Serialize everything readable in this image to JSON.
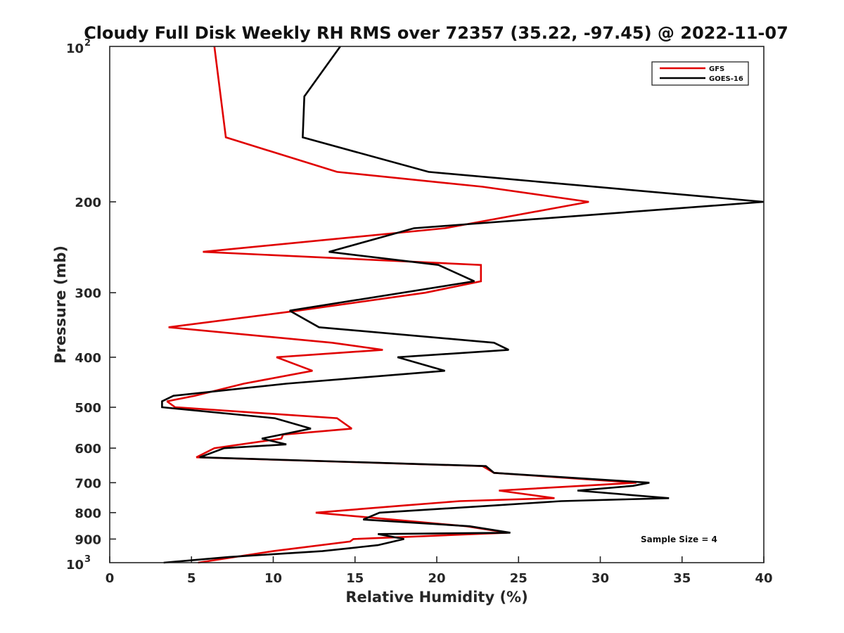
{
  "chart_data": {
    "type": "line",
    "title": "Cloudy Full Disk Weekly RH RMS over 72357 (35.22, -97.45) @ 2022-11-07",
    "xlabel": "Relative Humidity (%)",
    "ylabel": "Pressure (mb)",
    "xlim": [
      0,
      40
    ],
    "ylim": [
      100,
      1000
    ],
    "yscale": "log",
    "y_reversed": true,
    "x_ticks": [
      "0",
      "5",
      "10",
      "15",
      "20",
      "25",
      "30",
      "35",
      "40"
    ],
    "y_ticks": [
      {
        "value": 200,
        "label": "200"
      },
      {
        "value": 300,
        "label": "300"
      },
      {
        "value": 400,
        "label": "400"
      },
      {
        "value": 500,
        "label": "500"
      },
      {
        "value": 600,
        "label": "600"
      },
      {
        "value": 700,
        "label": "700"
      },
      {
        "value": 800,
        "label": "800"
      },
      {
        "value": 900,
        "label": "900"
      }
    ],
    "y_end_ticks": [
      {
        "value": 100,
        "base": "10",
        "exp": "2"
      },
      {
        "value": 1000,
        "base": "10",
        "exp": "3"
      }
    ],
    "grid": false,
    "legend_position": "top-right",
    "annotation": "Sample Size = 4",
    "series": [
      {
        "name": "GFS",
        "color": "#e00000",
        "points": [
          {
            "x": 6.4,
            "y": 100
          },
          {
            "x": 7.1,
            "y": 150
          },
          {
            "x": 13.9,
            "y": 175
          },
          {
            "x": 22.8,
            "y": 187
          },
          {
            "x": 29.3,
            "y": 200
          },
          {
            "x": 20.5,
            "y": 225
          },
          {
            "x": 5.7,
            "y": 250
          },
          {
            "x": 22.7,
            "y": 265
          },
          {
            "x": 22.7,
            "y": 285
          },
          {
            "x": 19.3,
            "y": 300
          },
          {
            "x": 11.5,
            "y": 325
          },
          {
            "x": 3.6,
            "y": 350
          },
          {
            "x": 13.6,
            "y": 375
          },
          {
            "x": 16.7,
            "y": 387
          },
          {
            "x": 10.2,
            "y": 400
          },
          {
            "x": 12.4,
            "y": 425
          },
          {
            "x": 8.2,
            "y": 450
          },
          {
            "x": 5.2,
            "y": 475
          },
          {
            "x": 3.5,
            "y": 487
          },
          {
            "x": 4.0,
            "y": 500
          },
          {
            "x": 13.9,
            "y": 525
          },
          {
            "x": 14.8,
            "y": 550
          },
          {
            "x": 10.6,
            "y": 565
          },
          {
            "x": 10.5,
            "y": 575
          },
          {
            "x": 6.4,
            "y": 600
          },
          {
            "x": 5.3,
            "y": 625
          },
          {
            "x": 22.8,
            "y": 650
          },
          {
            "x": 23.5,
            "y": 670
          },
          {
            "x": 32.2,
            "y": 700
          },
          {
            "x": 23.8,
            "y": 725
          },
          {
            "x": 27.2,
            "y": 750
          },
          {
            "x": 21.4,
            "y": 760
          },
          {
            "x": 18.0,
            "y": 775
          },
          {
            "x": 12.6,
            "y": 800
          },
          {
            "x": 21.8,
            "y": 850
          },
          {
            "x": 24.3,
            "y": 875
          },
          {
            "x": 14.9,
            "y": 900
          },
          {
            "x": 14.7,
            "y": 910
          },
          {
            "x": 10.0,
            "y": 950
          },
          {
            "x": 5.4,
            "y": 1000
          }
        ]
      },
      {
        "name": "GOES-16",
        "color": "#000000",
        "points": [
          {
            "x": 14.1,
            "y": 100
          },
          {
            "x": 11.9,
            "y": 125
          },
          {
            "x": 11.8,
            "y": 150
          },
          {
            "x": 19.5,
            "y": 175
          },
          {
            "x": 40.0,
            "y": 200
          },
          {
            "x": 18.6,
            "y": 225
          },
          {
            "x": 13.4,
            "y": 250
          },
          {
            "x": 20.1,
            "y": 265
          },
          {
            "x": 22.3,
            "y": 285
          },
          {
            "x": 11.0,
            "y": 325
          },
          {
            "x": 12.8,
            "y": 350
          },
          {
            "x": 23.5,
            "y": 375
          },
          {
            "x": 24.4,
            "y": 387
          },
          {
            "x": 17.6,
            "y": 400
          },
          {
            "x": 20.5,
            "y": 425
          },
          {
            "x": 10.8,
            "y": 450
          },
          {
            "x": 3.9,
            "y": 475
          },
          {
            "x": 3.2,
            "y": 487
          },
          {
            "x": 3.2,
            "y": 500
          },
          {
            "x": 10.1,
            "y": 525
          },
          {
            "x": 12.3,
            "y": 550
          },
          {
            "x": 9.3,
            "y": 575
          },
          {
            "x": 10.8,
            "y": 590
          },
          {
            "x": 7.0,
            "y": 600
          },
          {
            "x": 5.5,
            "y": 625
          },
          {
            "x": 23.0,
            "y": 650
          },
          {
            "x": 23.5,
            "y": 670
          },
          {
            "x": 33.0,
            "y": 700
          },
          {
            "x": 32.0,
            "y": 710
          },
          {
            "x": 28.6,
            "y": 725
          },
          {
            "x": 34.2,
            "y": 750
          },
          {
            "x": 27.6,
            "y": 760
          },
          {
            "x": 23.5,
            "y": 775
          },
          {
            "x": 16.5,
            "y": 800
          },
          {
            "x": 15.5,
            "y": 825
          },
          {
            "x": 22.0,
            "y": 850
          },
          {
            "x": 24.5,
            "y": 875
          },
          {
            "x": 16.4,
            "y": 880
          },
          {
            "x": 18.0,
            "y": 900
          },
          {
            "x": 16.4,
            "y": 925
          },
          {
            "x": 13.0,
            "y": 950
          },
          {
            "x": 7.3,
            "y": 975
          },
          {
            "x": 3.3,
            "y": 1000
          }
        ]
      }
    ]
  }
}
